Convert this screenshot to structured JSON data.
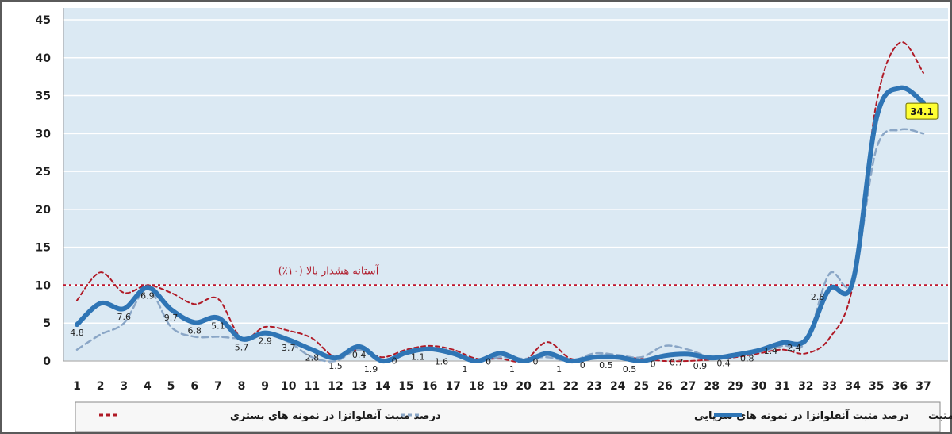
{
  "chart_data": {
    "type": "line",
    "x": [
      1,
      2,
      3,
      4,
      5,
      6,
      7,
      8,
      9,
      10,
      11,
      12,
      13,
      14,
      15,
      16,
      17,
      18,
      19,
      20,
      21,
      22,
      23,
      24,
      25,
      26,
      27,
      28,
      29,
      30,
      31,
      32,
      33,
      34,
      35,
      36,
      37
    ],
    "ylim": [
      0,
      45
    ],
    "yticks": [
      0,
      5,
      10,
      15,
      20,
      25,
      30,
      35,
      40,
      45
    ],
    "grid": true,
    "legend_position": "bottom",
    "threshold": {
      "value": 10,
      "label": "آستانه هشدار بالا (۱۰٪)",
      "color": "#c0142b"
    },
    "series": [
      {
        "name": "درصد مثبت آنفلوانزا در نمونه های بستری",
        "color": "#b01a26",
        "style": "dashed",
        "values": [
          8,
          11.7,
          9,
          10,
          9,
          7.5,
          8.2,
          3,
          4.5,
          4,
          3,
          0.5,
          1.5,
          0.5,
          1.5,
          2,
          1.5,
          0.3,
          0.3,
          0,
          2.5,
          0.3,
          0.5,
          0.5,
          0.3,
          0,
          0,
          0.2,
          0.5,
          1,
          1.5,
          1,
          3,
          10,
          34,
          42,
          38
        ]
      },
      {
        "name": "درصد مثبت آنفلوانزا در نمونه های سرپایی",
        "color": "#8aa6c6",
        "style": "dashed",
        "values": [
          1.5,
          3.5,
          5,
          9.5,
          4.5,
          3.2,
          3.2,
          3,
          3.5,
          2.5,
          0.5,
          0,
          1.5,
          0,
          1,
          1.5,
          1,
          0,
          0.5,
          0.3,
          0.5,
          0,
          1,
          0.8,
          0.5,
          2,
          1.5,
          0.5,
          1,
          1.2,
          2,
          2.5,
          11.5,
          10.5,
          28,
          30.5,
          30
        ]
      },
      {
        "name": "میانگین آنفلوانزا مثبت",
        "color": "#2f75b5",
        "style": "solid",
        "values": [
          4.8,
          7.6,
          6.9,
          9.7,
          6.8,
          5.1,
          5.7,
          2.9,
          3.7,
          2.8,
          1.5,
          0.4,
          1.9,
          0,
          1.1,
          1.6,
          1,
          0,
          1,
          0,
          1,
          0,
          0.5,
          0.5,
          0,
          0.7,
          0.9,
          0.4,
          0.8,
          1.4,
          2.4,
          2.8,
          9.5,
          10.5,
          32,
          36,
          34.1
        ],
        "data_labels": [
          {
            "x": 1,
            "text": "4.8"
          },
          {
            "x": 3,
            "text": "7.6"
          },
          {
            "x": 4,
            "text": "6.9"
          },
          {
            "x": 5,
            "text": "9.7"
          },
          {
            "x": 6,
            "text": "6.8"
          },
          {
            "x": 7,
            "text": "5.1"
          },
          {
            "x": 8,
            "text": "5.7"
          },
          {
            "x": 9,
            "text": "2.9"
          },
          {
            "x": 10,
            "text": "3.7"
          },
          {
            "x": 11,
            "text": "2.8"
          },
          {
            "x": 12,
            "text": "1.5"
          },
          {
            "x": 13,
            "text": "0.4"
          },
          {
            "x": 13.5,
            "text": "1.9"
          },
          {
            "x": 14.5,
            "text": "0"
          },
          {
            "x": 15.5,
            "text": "1.1"
          },
          {
            "x": 16.5,
            "text": "1.6"
          },
          {
            "x": 17.5,
            "text": "1"
          },
          {
            "x": 18.5,
            "text": "0"
          },
          {
            "x": 19.5,
            "text": "1"
          },
          {
            "x": 20.5,
            "text": "0"
          },
          {
            "x": 21.5,
            "text": "1"
          },
          {
            "x": 22.5,
            "text": "0"
          },
          {
            "x": 23.5,
            "text": "0.5"
          },
          {
            "x": 24.5,
            "text": "0.5"
          },
          {
            "x": 25.5,
            "text": "0"
          },
          {
            "x": 26.5,
            "text": "0.7"
          },
          {
            "x": 27.5,
            "text": "0.9"
          },
          {
            "x": 28.5,
            "text": "0.4"
          },
          {
            "x": 29.5,
            "text": "0.8"
          },
          {
            "x": 30.5,
            "text": "1.4"
          },
          {
            "x": 31.5,
            "text": "2.4"
          },
          {
            "x": 32.5,
            "text": "2.8"
          }
        ],
        "callout": {
          "x": 37,
          "text": "34.1"
        }
      }
    ]
  },
  "legend": {
    "items": [
      {
        "label": "درصد مثبت آنفلوانزا در نمونه های بستری",
        "color": "#b01a26",
        "style": "dashed"
      },
      {
        "label": "درصد مثبت آنفلوانزا در نمونه های سرپایی",
        "color": "#8aa6c6",
        "style": "dashed"
      },
      {
        "label": "میانگین آنفلوانزا مثبت",
        "color": "#2f75b5",
        "style": "solid"
      }
    ]
  },
  "colors": {
    "plot_background": "#dbe9f3",
    "grid": "#ffffff",
    "legend_background": "#f7f7f7"
  }
}
